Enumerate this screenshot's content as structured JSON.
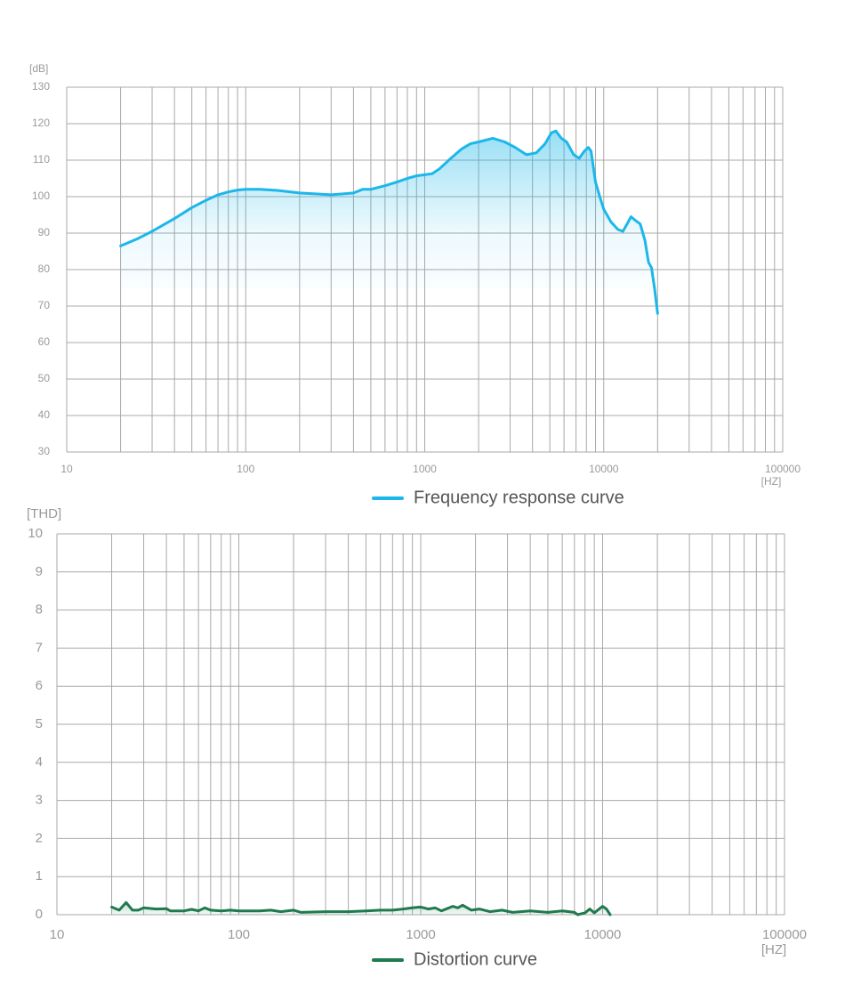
{
  "chart_data": [
    {
      "type": "line",
      "y_unit": "[dB]",
      "x_unit": "[HZ]",
      "x_scale": "log",
      "xlim": [
        10,
        100000
      ],
      "ylim": [
        30,
        130
      ],
      "xticks": [
        10,
        100,
        1000,
        10000,
        100000
      ],
      "x_minor_ticks": [
        20,
        30,
        40,
        50,
        60,
        70,
        80,
        90,
        200,
        300,
        400,
        500,
        600,
        700,
        800,
        900,
        2000,
        3000,
        4000,
        5000,
        6000,
        7000,
        8000,
        9000,
        20000,
        30000,
        40000,
        50000,
        60000,
        70000,
        80000,
        90000
      ],
      "yticks": [
        30,
        40,
        50,
        60,
        70,
        80,
        90,
        100,
        110,
        120,
        130
      ],
      "grid": true,
      "area_fill": true,
      "x": [
        20,
        25,
        30,
        40,
        50,
        60,
        70,
        80,
        90,
        100,
        120,
        150,
        200,
        300,
        400,
        450,
        500,
        600,
        700,
        800,
        900,
        1000,
        1100,
        1200,
        1400,
        1600,
        1800,
        2000,
        2400,
        2800,
        3200,
        3700,
        4200,
        4700,
        5100,
        5400,
        5800,
        6200,
        6800,
        7300,
        7800,
        8200,
        8500,
        9000,
        9500,
        10000,
        11000,
        12000,
        12800,
        13500,
        14200,
        15000,
        16000,
        17000,
        17800,
        18500,
        19200,
        20000
      ],
      "series": [
        {
          "name": "Frequency response curve",
          "color": "#1cb7ea",
          "values": [
            86.5,
            88.5,
            90.5,
            94,
            97,
            99,
            100.5,
            101.3,
            101.8,
            102,
            102,
            101.7,
            101,
            100.5,
            101,
            102,
            102,
            103,
            104,
            105,
            105.7,
            106,
            106.3,
            107.5,
            110.5,
            113,
            114.5,
            115,
            116,
            115,
            113.5,
            111.5,
            112,
            114.5,
            117.5,
            118,
            116,
            115,
            111.5,
            110.5,
            112.5,
            113.5,
            112.5,
            104,
            100,
            96.5,
            93,
            91,
            90.5,
            92.5,
            94.5,
            93.5,
            92.5,
            88,
            82,
            80.5,
            75,
            68
          ]
        }
      ]
    },
    {
      "type": "line",
      "y_unit": "[THD]",
      "x_unit": "[HZ]",
      "x_scale": "log",
      "xlim": [
        10,
        100000
      ],
      "ylim": [
        0,
        10
      ],
      "xticks": [
        10,
        100,
        1000,
        10000,
        100000
      ],
      "x_minor_ticks": [
        20,
        30,
        40,
        50,
        60,
        70,
        80,
        90,
        200,
        300,
        400,
        500,
        600,
        700,
        800,
        900,
        2000,
        3000,
        4000,
        5000,
        6000,
        7000,
        8000,
        9000,
        20000,
        30000,
        40000,
        50000,
        60000,
        70000,
        80000,
        90000
      ],
      "yticks": [
        0,
        1,
        2,
        3,
        4,
        5,
        6,
        7,
        8,
        9,
        10
      ],
      "grid": true,
      "area_fill": true,
      "x": [
        20,
        22,
        24,
        26,
        28,
        30,
        35,
        40,
        42,
        50,
        55,
        60,
        65,
        70,
        80,
        90,
        100,
        110,
        130,
        150,
        170,
        200,
        220,
        300,
        400,
        500,
        600,
        700,
        800,
        900,
        1000,
        1100,
        1200,
        1300,
        1500,
        1600,
        1700,
        1900,
        2100,
        2400,
        2800,
        3200,
        4000,
        5000,
        6000,
        7000,
        7300,
        8000,
        8500,
        9000,
        10000,
        10500,
        11000
      ],
      "series": [
        {
          "name": "Distortion curve",
          "color": "#1f7a4f",
          "values": [
            0.2,
            0.12,
            0.32,
            0.12,
            0.12,
            0.18,
            0.15,
            0.16,
            0.1,
            0.1,
            0.14,
            0.1,
            0.18,
            0.12,
            0.1,
            0.12,
            0.1,
            0.1,
            0.1,
            0.12,
            0.08,
            0.12,
            0.06,
            0.08,
            0.08,
            0.1,
            0.12,
            0.12,
            0.15,
            0.18,
            0.2,
            0.15,
            0.18,
            0.1,
            0.22,
            0.18,
            0.25,
            0.12,
            0.15,
            0.08,
            0.12,
            0.06,
            0.1,
            0.06,
            0.1,
            0.06,
            0,
            0.05,
            0.15,
            0.05,
            0.22,
            0.15,
            0
          ]
        }
      ]
    }
  ]
}
